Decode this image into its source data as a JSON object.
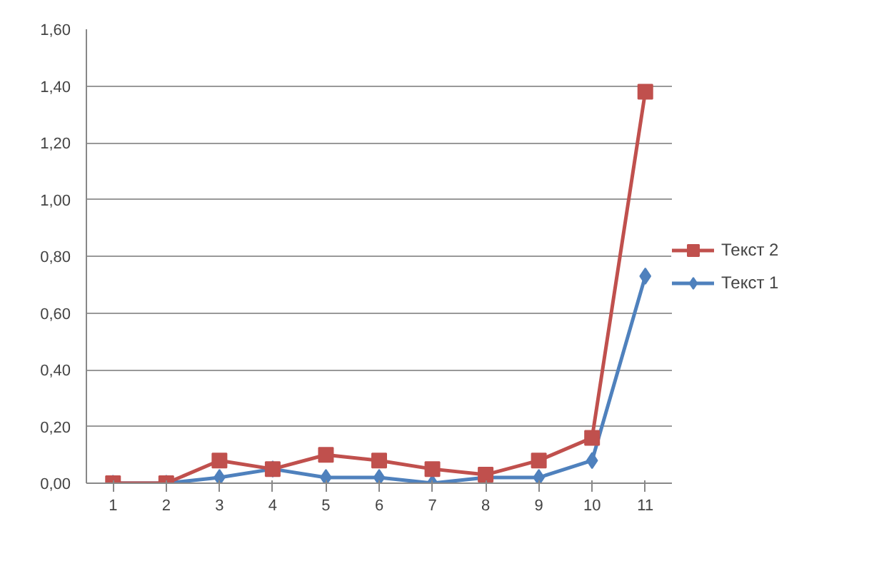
{
  "chart_data": {
    "type": "line",
    "categories": [
      "1",
      "2",
      "3",
      "4",
      "5",
      "6",
      "7",
      "8",
      "9",
      "10",
      "11"
    ],
    "series": [
      {
        "name": "Текст 2",
        "color": "#c0504d",
        "marker": "square",
        "values": [
          0,
          0,
          0.08,
          0.05,
          0.1,
          0.08,
          0.05,
          0.03,
          0.08,
          0.16,
          1.38
        ]
      },
      {
        "name": "Текст 1",
        "color": "#4f81bd",
        "marker": "diamond",
        "values": [
          0,
          0,
          0.02,
          0.05,
          0.02,
          0.02,
          0,
          0.02,
          0.02,
          0.08,
          0.73
        ]
      }
    ],
    "ylim": [
      0,
      1.6
    ],
    "yticks": [
      {
        "value": 0,
        "label": "0,00"
      },
      {
        "value": 0.2,
        "label": "0,20"
      },
      {
        "value": 0.4,
        "label": "0,40"
      },
      {
        "value": 0.6,
        "label": "0,60"
      },
      {
        "value": 0.8,
        "label": "0,80"
      },
      {
        "value": 1.0,
        "label": "1,00"
      },
      {
        "value": 1.2,
        "label": "1,20"
      },
      {
        "value": 1.4,
        "label": "1,40"
      },
      {
        "value": 1.6,
        "label": "1,60"
      }
    ],
    "grid": "y",
    "legend": "right",
    "line_style": "solid"
  }
}
